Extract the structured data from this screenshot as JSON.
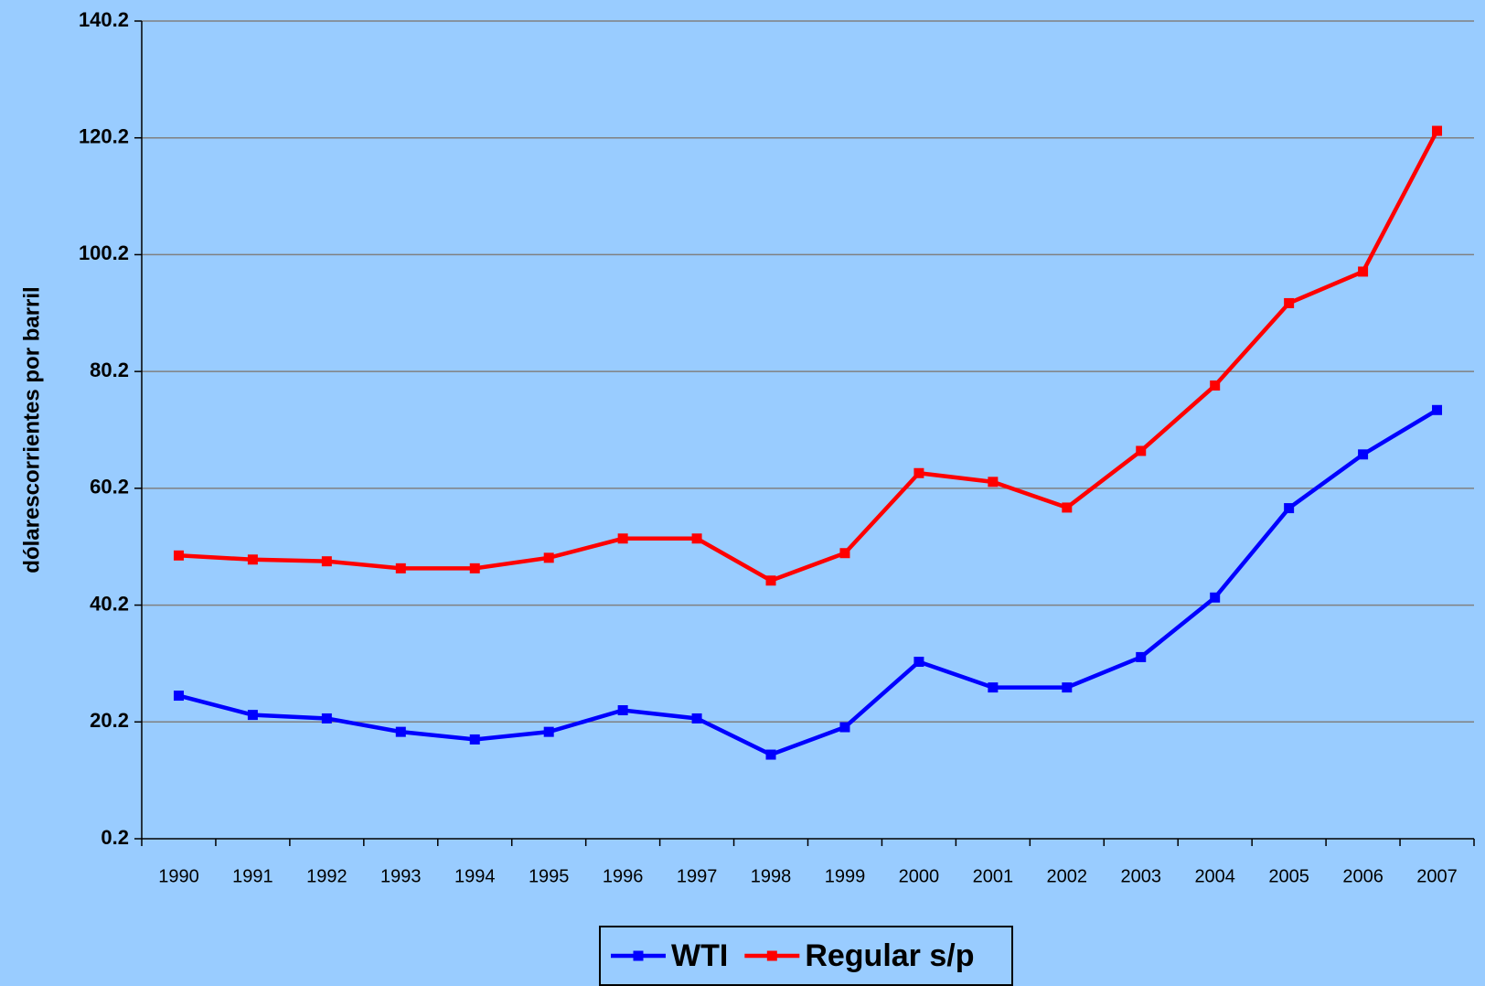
{
  "chart_data": {
    "type": "line",
    "y_label": "dólarescorrientes por barril",
    "categories": [
      "1990",
      "1991",
      "1992",
      "1993",
      "1994",
      "1995",
      "1996",
      "1997",
      "1998",
      "1999",
      "2000",
      "2001",
      "2002",
      "2003",
      "2004",
      "2005",
      "2006",
      "2007"
    ],
    "series": [
      {
        "name": "WTI",
        "color": "#0000ff",
        "values": [
          24.7,
          21.4,
          20.8,
          18.5,
          17.2,
          18.5,
          22.2,
          20.8,
          14.6,
          19.3,
          30.5,
          26.1,
          26.1,
          31.3,
          41.5,
          56.8,
          66.0,
          73.6
        ]
      },
      {
        "name": "Regular s/p",
        "color": "#ff0000",
        "values": [
          48.7,
          48.0,
          47.7,
          46.5,
          46.5,
          48.3,
          51.6,
          51.6,
          44.4,
          49.1,
          62.8,
          61.3,
          56.9,
          66.6,
          77.8,
          91.9,
          97.3,
          121.4
        ]
      }
    ],
    "ylim": [
      0.2,
      140.2
    ],
    "yticks": [
      0.2,
      20.2,
      40.2,
      60.2,
      80.2,
      100.2,
      120.2,
      140.2
    ],
    "grid": true,
    "legend": "bottom"
  }
}
